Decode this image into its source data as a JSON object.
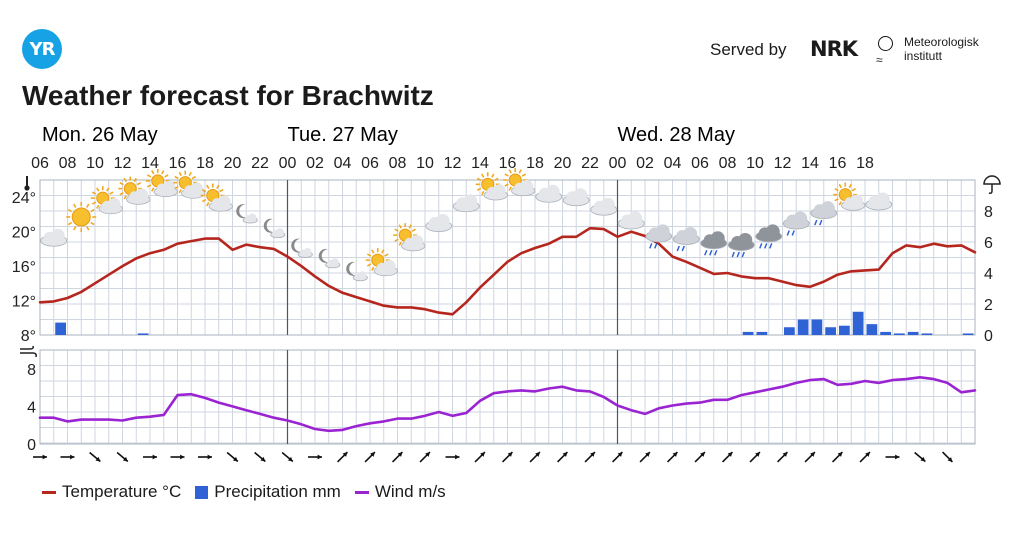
{
  "header": {
    "logo_text": "YR",
    "served_by": "Served by",
    "nrk": "NRK",
    "met_line1": "Meteorologisk",
    "met_line2": "institutt"
  },
  "title": "Weather forecast for Brachwitz",
  "colors": {
    "temperature": "#b5261e",
    "precip": "#2f62d4",
    "wind": "#9b24d2",
    "grid": "#cfd6e0"
  },
  "legend": [
    {
      "name": "legend-temperature",
      "label": "Temperature °C",
      "color": "#b5261e",
      "kind": "line"
    },
    {
      "name": "legend-precipitation",
      "label": "Precipitation mm",
      "color": "#2f62d4",
      "kind": "box"
    },
    {
      "name": "legend-wind",
      "label": "Wind m/s",
      "color": "#9b24d2",
      "kind": "line"
    }
  ],
  "chart_data": {
    "type": "line",
    "days": [
      {
        "label": "Mon. 26 May",
        "start_hour": 0
      },
      {
        "label": "Tue. 27 May",
        "start_hour": 18
      },
      {
        "label": "Wed. 28 May",
        "start_hour": 42
      }
    ],
    "hour_ticks": [
      "06",
      "08",
      "10",
      "12",
      "14",
      "16",
      "18",
      "20",
      "22",
      "00",
      "02",
      "04",
      "06",
      "08",
      "10",
      "12",
      "14",
      "16",
      "18",
      "20",
      "22",
      "00",
      "02",
      "04",
      "06",
      "08",
      "10",
      "12",
      "14",
      "16",
      "18"
    ],
    "temperature": {
      "unit": "°C",
      "ylim": [
        8,
        26
      ],
      "ticks": [
        "8°",
        "12°",
        "16°",
        "20°",
        "24°"
      ],
      "values": [
        11.8,
        11.9,
        12.3,
        13.0,
        14.0,
        15.0,
        16.0,
        16.9,
        17.5,
        17.9,
        18.6,
        18.9,
        19.2,
        19.2,
        17.9,
        18.5,
        18.2,
        18.0,
        17.1,
        16.0,
        14.8,
        13.7,
        12.9,
        12.4,
        11.9,
        11.4,
        11.2,
        11.2,
        11.0,
        10.6,
        10.4,
        11.8,
        13.5,
        15.0,
        16.5,
        17.5,
        18.1,
        18.6,
        19.4,
        19.4,
        20.4,
        20.3,
        19.4,
        20.0,
        19.5,
        18.6,
        17.1,
        16.5,
        15.8,
        15.1,
        15.2,
        14.8,
        14.6,
        14.6,
        14.2,
        13.8,
        13.6,
        14.2,
        15.0,
        15.4,
        15.5,
        15.6,
        17.5,
        18.4,
        18.2,
        18.6,
        18.3,
        18.4,
        17.6
      ]
    },
    "precipitation": {
      "unit": "mm",
      "ylim": [
        0,
        10
      ],
      "ticks": [
        "0",
        "2",
        "4",
        "6",
        "8"
      ],
      "values": [
        0,
        0.8,
        0,
        0,
        0,
        0,
        0,
        0.1,
        0,
        0,
        0,
        0,
        0,
        0,
        0,
        0,
        0,
        0,
        0,
        0,
        0,
        0,
        0,
        0,
        0,
        0,
        0,
        0,
        0,
        0,
        0,
        0,
        0,
        0,
        0,
        0,
        0,
        0,
        0,
        0,
        0,
        0,
        0,
        0,
        0,
        0,
        0,
        0,
        0,
        0,
        0,
        0.2,
        0.2,
        0,
        0.5,
        1.0,
        1.0,
        0.5,
        0.6,
        1.5,
        0.7,
        0.2,
        0.1,
        0.2,
        0.1,
        0,
        0,
        0.1
      ]
    },
    "wind": {
      "unit": "m/s",
      "ylim": [
        0,
        10
      ],
      "ticks": [
        "0",
        "4",
        "8"
      ],
      "values": [
        2.8,
        2.8,
        2.4,
        2.6,
        2.6,
        2.6,
        2.5,
        2.8,
        2.9,
        3.1,
        5.2,
        5.3,
        4.9,
        4.4,
        4.0,
        3.6,
        3.2,
        2.8,
        2.5,
        2.1,
        1.6,
        1.4,
        1.5,
        1.9,
        2.2,
        2.4,
        2.7,
        2.7,
        3.0,
        3.4,
        3.0,
        3.3,
        4.6,
        5.4,
        5.6,
        5.7,
        5.6,
        5.9,
        6.1,
        5.7,
        5.6,
        5.0,
        4.1,
        3.6,
        3.2,
        3.8,
        4.1,
        4.3,
        4.4,
        4.7,
        4.7,
        5.2,
        5.5,
        5.8,
        6.1,
        6.5,
        6.8,
        6.9,
        6.3,
        6.4,
        6.7,
        6.5,
        6.8,
        6.9,
        7.1,
        6.9,
        6.5,
        5.5,
        5.7
      ]
    },
    "wind_dir_deg": [
      90,
      90,
      130,
      130,
      90,
      90,
      90,
      130,
      130,
      130,
      90,
      45,
      45,
      45,
      45,
      90,
      45,
      45,
      45,
      45,
      45,
      45,
      45,
      45,
      45,
      45,
      45,
      45,
      45,
      45,
      45,
      90,
      130,
      135
    ],
    "weather_icons": [
      {
        "hour": 1,
        "icon": "cloudy",
        "level": 19.3
      },
      {
        "hour": 3,
        "icon": "sun",
        "level": 21.7
      },
      {
        "hour": 5,
        "icon": "partly-cloudy-day",
        "level": 23.2
      },
      {
        "hour": 7,
        "icon": "partly-cloudy-day",
        "level": 24.3
      },
      {
        "hour": 9,
        "icon": "partly-cloudy-day",
        "level": 25.2
      },
      {
        "hour": 11,
        "icon": "partly-cloudy-day",
        "level": 25.0
      },
      {
        "hour": 13,
        "icon": "partly-cloudy-day",
        "level": 23.5
      },
      {
        "hour": 15,
        "icon": "partly-cloudy-night",
        "level": 22.0
      },
      {
        "hour": 17,
        "icon": "partly-cloudy-night",
        "level": 20.3
      },
      {
        "hour": 19,
        "icon": "partly-cloudy-night",
        "level": 18.0
      },
      {
        "hour": 21,
        "icon": "partly-cloudy-night",
        "level": 16.8
      },
      {
        "hour": 23,
        "icon": "partly-cloudy-night",
        "level": 15.3
      },
      {
        "hour": 25,
        "icon": "partly-cloudy-day",
        "level": 16.0
      },
      {
        "hour": 27,
        "icon": "partly-cloudy-day",
        "level": 18.9
      },
      {
        "hour": 29,
        "icon": "cloudy",
        "level": 21.0
      },
      {
        "hour": 31,
        "icon": "cloudy",
        "level": 23.3
      },
      {
        "hour": 33,
        "icon": "partly-cloudy-day",
        "level": 24.8
      },
      {
        "hour": 35,
        "icon": "partly-cloudy-day",
        "level": 25.3
      },
      {
        "hour": 37,
        "icon": "cloudy",
        "level": 24.4
      },
      {
        "hour": 39,
        "icon": "cloudy",
        "level": 24.0
      },
      {
        "hour": 41,
        "icon": "cloudy",
        "level": 22.9
      },
      {
        "hour": 43,
        "icon": "cloudy",
        "level": 21.3
      },
      {
        "hour": 45,
        "icon": "rain",
        "level": 19.8
      },
      {
        "hour": 47,
        "icon": "rain",
        "level": 19.5
      },
      {
        "hour": 49,
        "icon": "heavy-rain",
        "level": 19.0
      },
      {
        "hour": 51,
        "icon": "heavy-rain",
        "level": 18.8
      },
      {
        "hour": 53,
        "icon": "heavy-rain",
        "level": 19.8
      },
      {
        "hour": 55,
        "icon": "rain",
        "level": 21.3
      },
      {
        "hour": 57,
        "icon": "rain",
        "level": 22.5
      },
      {
        "hour": 59,
        "icon": "partly-cloudy-day",
        "level": 23.6
      },
      {
        "hour": 61,
        "icon": "cloudy",
        "level": 23.5
      }
    ]
  }
}
